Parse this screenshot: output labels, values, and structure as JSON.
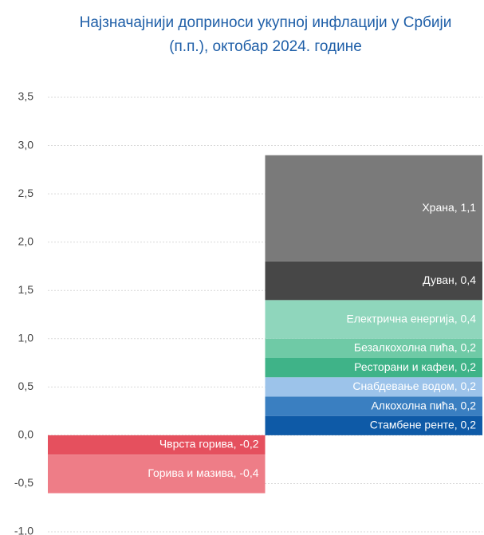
{
  "chart_data": {
    "type": "bar",
    "stacked": true,
    "title": "Најзначајнији доприноси укупној инфлацији у Србији (п.п.), октобар 2024. године",
    "categories": [
      null,
      null
    ],
    "ylim": [
      -1,
      3.5
    ],
    "yticks": [
      {
        "value": -1,
        "label": "-1,0"
      },
      {
        "value": -0.5,
        "label": "-0,5"
      },
      {
        "value": 0,
        "label": "0,0"
      },
      {
        "value": 0.5,
        "label": "0,5"
      },
      {
        "value": 1,
        "label": "1,0"
      },
      {
        "value": 1.5,
        "label": "1,5"
      },
      {
        "value": 2,
        "label": "2,0"
      },
      {
        "value": 2.5,
        "label": "2,5"
      },
      {
        "value": 3,
        "label": "3,0"
      },
      {
        "value": 3.5,
        "label": "3,5"
      }
    ],
    "grid": true,
    "series": [
      {
        "color": "#0e5aa7",
        "values": [
          null,
          0.2
        ],
        "value_labels": [
          null,
          "Стамбене ренте, 0,2"
        ]
      },
      {
        "color": "#3a7fc1",
        "values": [
          null,
          0.2
        ],
        "value_labels": [
          null,
          "Алкохолна пића, 0,2"
        ]
      },
      {
        "color": "#9cc3ea",
        "values": [
          null,
          0.2
        ],
        "value_labels": [
          null,
          "Снабдевање водом, 0,2"
        ]
      },
      {
        "color": "#3fb388",
        "values": [
          null,
          0.2
        ],
        "value_labels": [
          null,
          "Ресторани и кафеи, 0,2"
        ]
      },
      {
        "color": "#6fcaa6",
        "values": [
          null,
          0.2
        ],
        "value_labels": [
          null,
          "Безалкохолна пића, 0,2"
        ]
      },
      {
        "color": "#8fd6bc",
        "values": [
          null,
          0.4
        ],
        "value_labels": [
          null,
          "Електрична енергија, 0,4"
        ]
      },
      {
        "color": "#474747",
        "values": [
          null,
          0.4
        ],
        "value_labels": [
          null,
          "Дуван, 0,4"
        ]
      },
      {
        "color": "#7a7a7a",
        "values": [
          null,
          1.1
        ],
        "value_labels": [
          null,
          "Храна, 1,1"
        ]
      },
      {
        "color": "#e5505e",
        "values": [
          -0.2,
          null
        ],
        "value_labels": [
          "Чврста горива, -0,2",
          null
        ]
      },
      {
        "color": "#ee7d87",
        "values": [
          -0.4,
          null
        ],
        "value_labels": [
          "Горива и мазива, -0,4",
          null
        ]
      }
    ]
  }
}
